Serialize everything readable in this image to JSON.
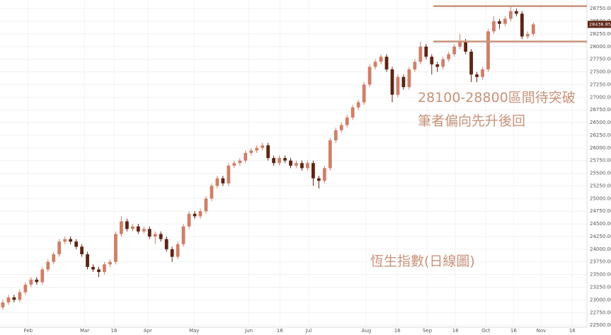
{
  "chart_data": {
    "type": "candlestick",
    "annotations": [
      "28100-28800區間待突破",
      "筆者偏向先升後回",
      "恆生指數(日線圖)"
    ],
    "hlines": [
      28800,
      28100
    ],
    "last_price": 28438.85,
    "up_color": "#cf7f68",
    "down_color": "#5e2415",
    "line_color": "#c8937a",
    "xlim": [
      -0.5,
      103.5
    ],
    "xticks": [
      {
        "value": 4.5,
        "label": "Feb"
      },
      {
        "value": 14.5,
        "label": "Mar"
      },
      {
        "value": 19.7,
        "label": "16"
      },
      {
        "value": 25.7,
        "label": "Apr"
      },
      {
        "value": 33.9,
        "label": "May"
      },
      {
        "value": 43.6,
        "label": "Jun"
      },
      {
        "value": 49.1,
        "label": "16"
      },
      {
        "value": 54.2,
        "label": "Jul"
      },
      {
        "value": 64.4,
        "label": "Aug"
      },
      {
        "value": 69.9,
        "label": "16"
      },
      {
        "value": 75.2,
        "label": "Sep"
      },
      {
        "value": 80.2,
        "label": "16"
      },
      {
        "value": 85.6,
        "label": "Oct"
      },
      {
        "value": 90.5,
        "label": "16"
      },
      {
        "value": 95.4,
        "label": "Nov"
      },
      {
        "value": 100.9,
        "label": "16"
      }
    ],
    "ylim": [
      22460,
      28920
    ],
    "yticks": [
      {
        "value": 22500,
        "label": "22500.00"
      },
      {
        "value": 22750,
        "label": "22750.00"
      },
      {
        "value": 23000,
        "label": "23000.00"
      },
      {
        "value": 23250,
        "label": "23250.00"
      },
      {
        "value": 23500,
        "label": "23500.00"
      },
      {
        "value": 23750,
        "label": "23750.00"
      },
      {
        "value": 24000,
        "label": "24000.00"
      },
      {
        "value": 24250,
        "label": "24250.00"
      },
      {
        "value": 24500,
        "label": "24500.00"
      },
      {
        "value": 24750,
        "label": "24750.00"
      },
      {
        "value": 25000,
        "label": "25000.00"
      },
      {
        "value": 25250,
        "label": "25250.00"
      },
      {
        "value": 25500,
        "label": "25500.00"
      },
      {
        "value": 25750,
        "label": "25750.00"
      },
      {
        "value": 26000,
        "label": "26000.00"
      },
      {
        "value": 26250,
        "label": "26250.00"
      },
      {
        "value": 26500,
        "label": "26500.00"
      },
      {
        "value": 26750,
        "label": "26750.00"
      },
      {
        "value": 27000,
        "label": "27000.00"
      },
      {
        "value": 27250,
        "label": "27250.00"
      },
      {
        "value": 27500,
        "label": "27500.00"
      },
      {
        "value": 27750,
        "label": "27750.00"
      },
      {
        "value": 28000,
        "label": "28000.00"
      },
      {
        "value": 28250,
        "label": "28250.00"
      },
      {
        "value": 28500,
        "label": "28500.00"
      },
      {
        "value": 28750,
        "label": "28750.00"
      }
    ],
    "grid": true,
    "open": [
      22850,
      22950,
      23050,
      23000,
      23150,
      23300,
      23400,
      23350,
      23600,
      23750,
      23900,
      24150,
      24200,
      24150,
      24050,
      23900,
      23650,
      23600,
      23550,
      23700,
      23750,
      24300,
      24550,
      24400,
      24450,
      24350,
      24400,
      24250,
      24300,
      24200,
      24000,
      23850,
      24100,
      24450,
      24700,
      24650,
      24750,
      25000,
      25250,
      25400,
      25300,
      25650,
      25700,
      25750,
      25900,
      25950,
      26000,
      26050,
      25800,
      25700,
      25800,
      25750,
      25650,
      25700,
      25600,
      25700,
      25400,
      25350,
      25600,
      26150,
      26350,
      26450,
      26600,
      26800,
      26900,
      27250,
      27600,
      27700,
      27800,
      27550,
      27050,
      27400,
      27200,
      27550,
      27700,
      28000,
      27800,
      27650,
      27600,
      27750,
      27850,
      28000,
      28100,
      27900,
      27450,
      27400,
      27550,
      28300,
      28500,
      28450,
      28550,
      28700,
      28650,
      28200,
      28250
    ],
    "high": [
      23000,
      23100,
      23100,
      23200,
      23350,
      23450,
      23450,
      23650,
      23800,
      23950,
      24200,
      24250,
      24250,
      24200,
      24100,
      23950,
      23700,
      23650,
      23750,
      23800,
      24350,
      24650,
      24600,
      24500,
      24500,
      24450,
      24450,
      24350,
      24350,
      24250,
      24050,
      24150,
      24500,
      24750,
      24750,
      24800,
      25050,
      25300,
      25450,
      25450,
      25700,
      25750,
      25800,
      25950,
      26000,
      26050,
      26100,
      26100,
      25850,
      25850,
      25850,
      25800,
      25750,
      25750,
      25750,
      25750,
      25450,
      25650,
      26200,
      26400,
      26500,
      26650,
      26850,
      26950,
      27300,
      27650,
      27750,
      27850,
      27850,
      27600,
      27450,
      27450,
      27600,
      27750,
      28100,
      28050,
      27850,
      27700,
      27800,
      27900,
      28050,
      28250,
      28150,
      27950,
      27500,
      27600,
      28350,
      28600,
      28550,
      28600,
      28800,
      28750,
      28700,
      28300,
      28480
    ],
    "low": [
      22800,
      22900,
      22950,
      22950,
      23100,
      23250,
      23300,
      23300,
      23550,
      23700,
      23850,
      24100,
      24100,
      24000,
      23850,
      23600,
      23550,
      23450,
      23500,
      23650,
      23700,
      24250,
      24350,
      24350,
      24300,
      24300,
      24200,
      24100,
      24150,
      23950,
      23750,
      23800,
      24050,
      24400,
      24600,
      24600,
      24700,
      24950,
      25200,
      25250,
      25250,
      25600,
      25650,
      25700,
      25850,
      25900,
      25950,
      25750,
      25650,
      25650,
      25700,
      25600,
      25600,
      25550,
      25550,
      25250,
      25200,
      25300,
      25550,
      26100,
      26300,
      26400,
      26550,
      26750,
      26850,
      27200,
      27550,
      27650,
      27500,
      26900,
      27000,
      27150,
      27150,
      27500,
      27650,
      27750,
      27450,
      27500,
      27550,
      27700,
      27800,
      27950,
      27850,
      27300,
      27300,
      27350,
      27500,
      28250,
      28350,
      28400,
      28500,
      28600,
      28150,
      28150,
      28200
    ],
    "close": [
      22950,
      23050,
      23000,
      23150,
      23300,
      23400,
      23350,
      23600,
      23750,
      23900,
      24150,
      24200,
      24150,
      24050,
      23900,
      23650,
      23600,
      23550,
      23700,
      23750,
      24300,
      24550,
      24400,
      24450,
      24350,
      24400,
      24250,
      24300,
      24200,
      24000,
      23850,
      24100,
      24450,
      24700,
      24650,
      24750,
      25000,
      25250,
      25400,
      25300,
      25650,
      25700,
      25750,
      25900,
      25950,
      26000,
      26050,
      25800,
      25700,
      25800,
      25750,
      25650,
      25700,
      25600,
      25700,
      25400,
      25350,
      25600,
      26150,
      26350,
      26450,
      26600,
      26800,
      26900,
      27250,
      27600,
      27700,
      27800,
      27550,
      27050,
      27400,
      27200,
      27550,
      27700,
      28000,
      27800,
      27650,
      27600,
      27750,
      27850,
      28000,
      28100,
      27900,
      27450,
      27400,
      27550,
      28300,
      28500,
      28450,
      28550,
      28700,
      28650,
      28200,
      28250,
      28438.85
    ]
  }
}
